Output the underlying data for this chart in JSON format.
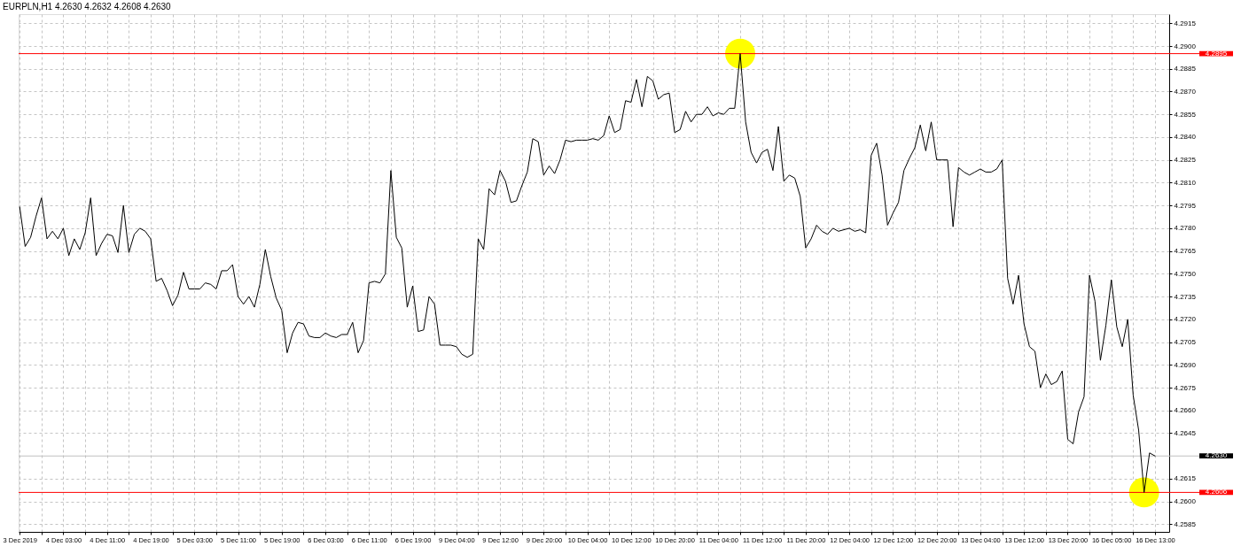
{
  "chart_data": {
    "type": "line",
    "title": "EURPLN,H1 4.2630 4.2632 4.2608 4.2630",
    "categories": [
      "3 Dec 2019",
      null,
      null,
      null,
      null,
      null,
      null,
      null,
      "4 Dec 03:00",
      null,
      null,
      null,
      null,
      null,
      null,
      null,
      "4 Dec 11:00",
      null,
      null,
      null,
      null,
      null,
      null,
      null,
      "4 Dec 19:00",
      null,
      null,
      null,
      null,
      null,
      null,
      null,
      "5 Dec 03:00",
      null,
      null,
      null,
      null,
      null,
      null,
      null,
      "5 Dec 11:00",
      null,
      null,
      null,
      null,
      null,
      null,
      null,
      "5 Dec 19:00",
      null,
      null,
      null,
      null,
      null,
      null,
      null,
      "6 Dec 03:00",
      null,
      null,
      null,
      null,
      null,
      null,
      null,
      "6 Dec 11:00",
      null,
      null,
      null,
      null,
      null,
      null,
      null,
      "6 Dec 19:00",
      null,
      null,
      null,
      null,
      null,
      null,
      null,
      "9 Dec 04:00",
      null,
      null,
      null,
      null,
      null,
      null,
      null,
      "9 Dec 12:00",
      null,
      null,
      null,
      null,
      null,
      null,
      null,
      "9 Dec 20:00",
      null,
      null,
      null,
      null,
      null,
      null,
      null,
      "10 Dec 04:00",
      null,
      null,
      null,
      null,
      null,
      null,
      null,
      "10 Dec 12:00",
      null,
      null,
      null,
      null,
      null,
      null,
      null,
      "10 Dec 20:00",
      null,
      null,
      null,
      null,
      null,
      null,
      null,
      "11 Dec 04:00",
      null,
      null,
      null,
      null,
      null,
      null,
      null,
      "11 Dec 12:00",
      null,
      null,
      null,
      null,
      null,
      null,
      null,
      "11 Dec 20:00",
      null,
      null,
      null,
      null,
      null,
      null,
      null,
      "12 Dec 04:00",
      null,
      null,
      null,
      null,
      null,
      null,
      null,
      "12 Dec 12:00",
      null,
      null,
      null,
      null,
      null,
      null,
      null,
      "12 Dec 20:00",
      null,
      null,
      null,
      null,
      null,
      null,
      null,
      "13 Dec 04:00",
      null,
      null,
      null,
      null,
      null,
      null,
      null,
      "13 Dec 12:00",
      null,
      null,
      null,
      null,
      null,
      null,
      null,
      "13 Dec 20:00",
      null,
      null,
      null,
      null,
      null,
      null,
      null,
      "16 Dec 05:00",
      null,
      null,
      null,
      null,
      null,
      null,
      null,
      "16 Dec 13:00"
    ],
    "series": [
      {
        "color": "#000000",
        "values": [
          4.2794,
          4.2768,
          4.2774,
          4.2788,
          4.28,
          4.2773,
          4.2778,
          4.2773,
          4.278,
          4.2762,
          4.2773,
          4.2766,
          4.2777,
          4.28,
          4.2762,
          4.277,
          4.2776,
          4.2775,
          4.2764,
          4.2795,
          4.2764,
          4.2776,
          4.278,
          4.2778,
          4.2773,
          4.2745,
          4.2747,
          4.2739,
          4.2729,
          4.2736,
          4.2751,
          4.274,
          4.274,
          4.274,
          4.2744,
          4.2743,
          4.274,
          4.2752,
          4.2752,
          4.2756,
          4.2735,
          4.273,
          4.2735,
          4.2728,
          4.2743,
          4.2766,
          4.2748,
          4.2734,
          4.2726,
          4.2698,
          4.2711,
          4.2718,
          4.2717,
          4.2709,
          4.2708,
          4.2708,
          4.2711,
          4.2709,
          4.2708,
          4.271,
          4.271,
          4.2718,
          4.2698,
          4.2706,
          4.2744,
          4.2745,
          4.2744,
          4.275,
          4.2818,
          4.2774,
          4.2767,
          4.2728,
          4.2742,
          4.2712,
          4.2713,
          4.2735,
          4.273,
          4.2703,
          4.2703,
          4.2703,
          4.2702,
          4.2697,
          4.2695,
          4.2697,
          4.2773,
          4.2766,
          4.2806,
          4.2802,
          4.2818,
          4.2811,
          4.2797,
          4.2798,
          4.2808,
          4.2817,
          4.2839,
          4.2837,
          4.2815,
          4.2821,
          4.2816,
          4.2825,
          4.2838,
          4.2837,
          4.2838,
          4.2838,
          4.2838,
          4.2839,
          4.2838,
          4.2841,
          4.2854,
          4.2843,
          4.2845,
          4.2864,
          4.2863,
          4.2878,
          4.286,
          4.288,
          4.2877,
          4.2865,
          4.2868,
          4.2869,
          4.2843,
          4.2845,
          4.2857,
          4.285,
          4.2855,
          4.2855,
          4.286,
          4.2854,
          4.2856,
          4.2855,
          4.2859,
          4.2859,
          4.2895,
          4.285,
          4.283,
          4.2823,
          4.283,
          4.2832,
          4.2818,
          4.2847,
          4.2811,
          4.2815,
          4.2813,
          4.2801,
          4.2767,
          4.2773,
          4.2782,
          4.2778,
          4.2776,
          4.278,
          4.2778,
          4.2779,
          4.278,
          4.2778,
          4.2779,
          4.2777,
          4.2828,
          4.2836,
          4.2815,
          4.2782,
          4.279,
          4.2797,
          4.2818,
          4.2826,
          4.2833,
          4.2848,
          4.2831,
          4.285,
          4.2825,
          4.2825,
          4.2825,
          4.2781,
          4.282,
          4.2817,
          4.2815,
          4.2817,
          4.2819,
          4.2817,
          4.2817,
          4.2819,
          4.2825,
          4.2747,
          4.273,
          4.2749,
          4.2717,
          4.2702,
          4.2699,
          4.2675,
          4.2684,
          4.2677,
          4.2679,
          4.2686,
          4.2641,
          4.2638,
          4.2659,
          4.2669,
          4.2749,
          4.2732,
          4.2693,
          4.2716,
          4.2746,
          4.2715,
          4.2702,
          4.272,
          4.267,
          4.2647,
          4.2606,
          4.2632,
          4.263
        ]
      },
      {
        "type": "scatter",
        "marker": "circle",
        "color": "#ffff00",
        "values": [
          null,
          null,
          null,
          null,
          null,
          null,
          null,
          null,
          null,
          null,
          null,
          null,
          null,
          null,
          null,
          null,
          null,
          null,
          null,
          null,
          null,
          null,
          null,
          null,
          null,
          null,
          null,
          null,
          null,
          null,
          null,
          null,
          null,
          null,
          null,
          null,
          null,
          null,
          null,
          null,
          null,
          null,
          null,
          null,
          null,
          null,
          null,
          null,
          null,
          null,
          null,
          null,
          null,
          null,
          null,
          null,
          null,
          null,
          null,
          null,
          null,
          null,
          null,
          null,
          null,
          null,
          null,
          null,
          null,
          null,
          null,
          null,
          null,
          null,
          null,
          null,
          null,
          null,
          null,
          null,
          null,
          null,
          null,
          null,
          null,
          null,
          null,
          null,
          null,
          null,
          null,
          null,
          null,
          null,
          null,
          null,
          null,
          null,
          null,
          null,
          null,
          null,
          null,
          null,
          null,
          null,
          null,
          null,
          null,
          null,
          null,
          null,
          null,
          null,
          null,
          null,
          null,
          null,
          null,
          null,
          null,
          null,
          null,
          null,
          null,
          null,
          null,
          null,
          null,
          null,
          null,
          null,
          4.2895,
          null,
          null,
          null,
          null,
          null,
          null,
          null,
          null,
          null,
          null,
          null,
          null,
          null,
          null,
          null,
          null,
          null,
          null,
          null,
          null,
          null,
          null,
          null,
          null,
          null,
          null,
          null,
          null,
          null,
          null,
          null,
          null,
          null,
          null,
          null,
          null,
          null,
          null,
          null,
          null,
          null,
          null,
          null,
          null,
          null,
          null,
          null,
          null,
          null,
          null,
          null,
          null,
          null,
          null,
          null,
          null,
          null,
          null,
          null,
          null,
          null,
          null,
          null,
          null,
          null,
          null,
          null,
          null,
          null,
          null,
          null,
          null,
          null,
          4.2606,
          null,
          null
        ]
      }
    ],
    "ylim": [
      4.258,
      4.2921
    ],
    "yticks": [
      4.2585,
      {
        "value": 4.26,
        "label": "4.2600"
      },
      4.2615,
      4.2645,
      {
        "value": 4.266,
        "label": "4.2660"
      },
      4.2675,
      {
        "value": 4.269,
        "label": "4.2690"
      },
      4.2705,
      {
        "value": 4.272,
        "label": "4.2720"
      },
      4.2735,
      {
        "value": 4.275,
        "label": "4.2750"
      },
      4.2765,
      {
        "value": 4.278,
        "label": "4.2780"
      },
      4.2795,
      {
        "value": 4.281,
        "label": "4.2810"
      },
      4.2825,
      {
        "value": 4.284,
        "label": "4.2840"
      },
      4.2855,
      {
        "value": 4.287,
        "label": "4.2870"
      },
      4.2885,
      {
        "value": 4.29,
        "label": "4.2900"
      },
      4.2915
    ],
    "grid": true,
    "ref_lines": [
      {
        "axis": "y",
        "value": 4.2895,
        "label": "4.2895",
        "color": "#ff0000"
      },
      {
        "axis": "y",
        "value": 4.263,
        "label": "4.2630",
        "color": "#c0c0c0"
      },
      {
        "axis": "y",
        "value": 4.2606,
        "label": "4.2606",
        "color": "#ff0000"
      }
    ]
  }
}
